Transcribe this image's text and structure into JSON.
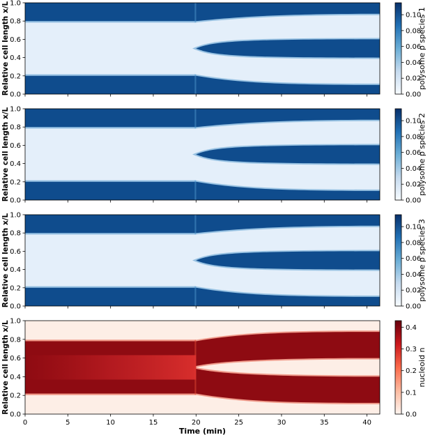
{
  "chart_data": [
    {
      "type": "heatmap",
      "ylabel": "Relative cell length x/L",
      "colorbar_label": "polysome p species 1",
      "colormap": "Blues",
      "colorbar_ticks": [
        "0.00",
        "0.02",
        "0.04",
        "0.06",
        "0.08",
        "0.10"
      ],
      "colorbar_range": [
        0,
        0.115
      ],
      "yticks": [
        "0.0",
        "0.2",
        "0.4",
        "0.6",
        "0.8",
        "1.0"
      ],
      "ylim": [
        0,
        1
      ],
      "xlim": [
        0,
        41.5
      ],
      "event_time": 20,
      "bands_before": [
        [
          0,
          0.2
        ],
        [
          0.8,
          1.0
        ]
      ],
      "bands_after": [
        [
          0,
          0.1
        ],
        [
          0.4,
          0.6
        ],
        [
          0.88,
          1.0
        ]
      ]
    },
    {
      "type": "heatmap",
      "ylabel": "Relative cell length x/L",
      "colorbar_label": "polysome p species 2",
      "colormap": "Blues",
      "colorbar_ticks": [
        "0.00",
        "0.02",
        "0.04",
        "0.06",
        "0.08",
        "0.10"
      ],
      "colorbar_range": [
        0,
        0.115
      ],
      "yticks": [
        "0.0",
        "0.2",
        "0.4",
        "0.6",
        "0.8",
        "1.0"
      ],
      "ylim": [
        0,
        1
      ],
      "xlim": [
        0,
        41.5
      ],
      "event_time": 20,
      "bands_before": [
        [
          0,
          0.2
        ],
        [
          0.8,
          1.0
        ]
      ],
      "bands_after": [
        [
          0,
          0.1
        ],
        [
          0.4,
          0.6
        ],
        [
          0.88,
          1.0
        ]
      ]
    },
    {
      "type": "heatmap",
      "ylabel": "Relative cell length x/L",
      "colorbar_label": "polysome p species 3",
      "colormap": "Blues",
      "colorbar_ticks": [
        "0.00",
        "0.02",
        "0.04",
        "0.06",
        "0.08",
        "0.10"
      ],
      "colorbar_range": [
        0,
        0.115
      ],
      "yticks": [
        "0.0",
        "0.2",
        "0.4",
        "0.6",
        "0.8",
        "1.0"
      ],
      "ylim": [
        0,
        1
      ],
      "xlim": [
        0,
        41.5
      ],
      "event_time": 20,
      "bands_before": [
        [
          0,
          0.2
        ],
        [
          0.8,
          1.0
        ]
      ],
      "bands_after": [
        [
          0,
          0.1
        ],
        [
          0.4,
          0.6
        ],
        [
          0.88,
          1.0
        ]
      ]
    },
    {
      "type": "heatmap",
      "ylabel": "Relative cell length x/L",
      "colorbar_label": "nucleoid n",
      "colormap": "Reds",
      "colorbar_ticks": [
        "0.0",
        "0.1",
        "0.2",
        "0.3",
        "0.4"
      ],
      "colorbar_range": [
        0,
        0.43
      ],
      "yticks": [
        "0.0",
        "0.2",
        "0.4",
        "0.6",
        "0.8",
        "1.0"
      ],
      "ylim": [
        0,
        1
      ],
      "xlim": [
        0,
        41.5
      ],
      "event_time": 20,
      "bands_before": [
        [
          0.22,
          0.78
        ]
      ],
      "bands_after": [
        [
          0.12,
          0.4
        ],
        [
          0.6,
          0.88
        ]
      ],
      "xlabel": "Time (min)",
      "xticks": [
        "0",
        "5",
        "10",
        "15",
        "20",
        "25",
        "30",
        "35",
        "40"
      ]
    }
  ]
}
